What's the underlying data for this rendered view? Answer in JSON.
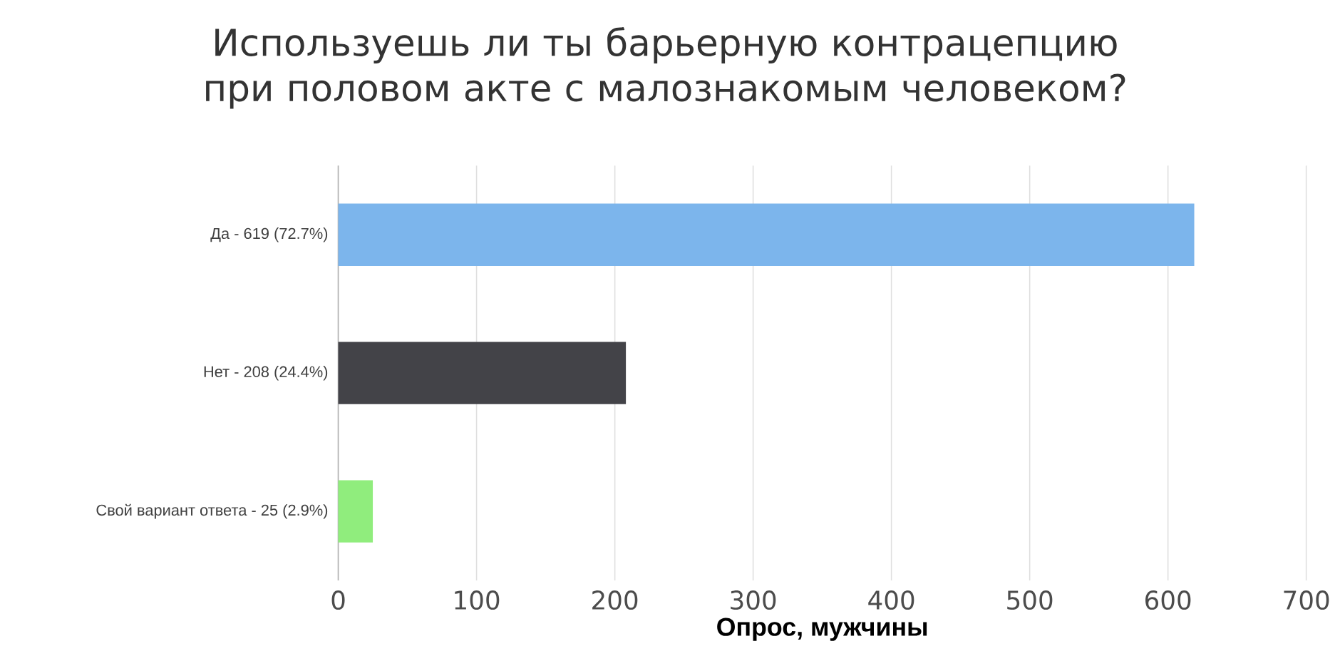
{
  "chart_data": {
    "type": "bar",
    "orientation": "horizontal",
    "title": "Используешь ли ты барьерную контрацепцию при половом акте с малознакомым человеком?",
    "xlabel": "Опрос, мужчины",
    "categories": [
      "Да - 619 (72.7%)",
      "Нет - 208 (24.4%)",
      "Свой вариант ответа - 25 (2.9%)"
    ],
    "values": [
      619,
      208,
      25
    ],
    "colors": [
      "#7cb5ec",
      "#434348",
      "#90ed7d"
    ],
    "xlim": [
      0,
      700
    ],
    "xticks": [
      0,
      100,
      200,
      300,
      400,
      500,
      600,
      700
    ],
    "grid": "x"
  }
}
